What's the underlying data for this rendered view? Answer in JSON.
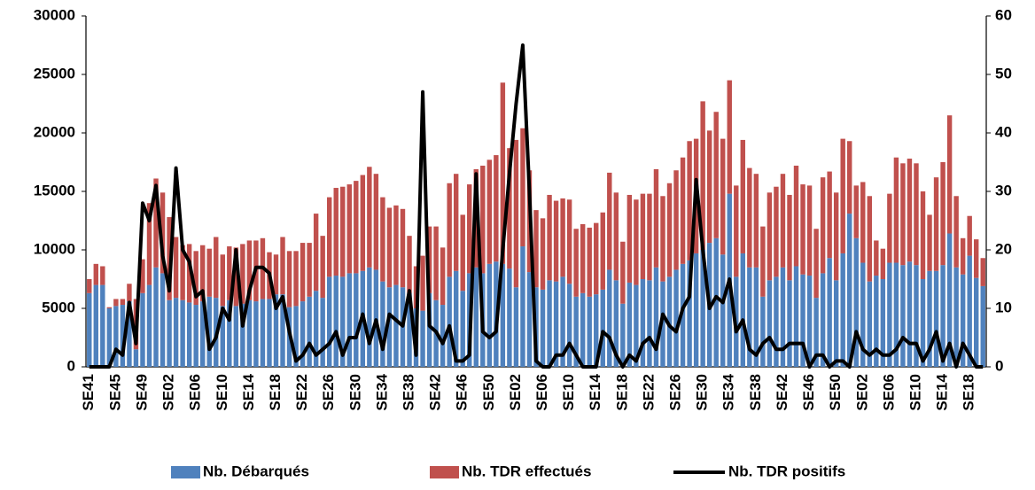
{
  "chart_data": {
    "type": "bar",
    "stacked": true,
    "categories": [
      "SE41",
      null,
      null,
      null,
      "SE45",
      null,
      null,
      null,
      "SE49",
      null,
      null,
      null,
      "SE02",
      null,
      null,
      null,
      "SE06",
      null,
      null,
      null,
      "SE10",
      null,
      null,
      null,
      "SE14",
      null,
      null,
      null,
      "SE18",
      null,
      null,
      null,
      "SE22",
      null,
      null,
      null,
      "SE26",
      null,
      null,
      null,
      "SE30",
      null,
      null,
      null,
      "SE34",
      null,
      null,
      null,
      "SE38",
      null,
      null,
      null,
      "SE42",
      null,
      null,
      null,
      "SE46",
      null,
      null,
      null,
      "SE50",
      null,
      null,
      null,
      "SE02",
      null,
      null,
      null,
      "SE06",
      null,
      null,
      null,
      "SE10",
      null,
      null,
      null,
      "SE14",
      null,
      null,
      null,
      "SE18",
      null,
      null,
      null,
      "SE22",
      null,
      null,
      null,
      "SE26",
      null,
      null,
      null,
      "SE30",
      null,
      null,
      null,
      "SE34",
      null,
      null,
      null,
      "SE38",
      null,
      null,
      null,
      "SE42",
      null,
      null,
      null,
      "SE46",
      null,
      null,
      null,
      "SE50",
      null,
      null,
      null,
      "SE02",
      null,
      null,
      null,
      "SE06",
      null,
      null,
      null,
      "SE10",
      null,
      null,
      null,
      "SE14",
      null,
      null,
      null,
      "SE18",
      null,
      null
    ],
    "series": [
      {
        "name": "Nb. Débarqués",
        "color": "#4f81bd",
        "type": "bar",
        "values": [
          6300,
          7000,
          7000,
          5000,
          5200,
          5300,
          5600,
          1500,
          6300,
          7000,
          8500,
          8000,
          5700,
          5900,
          5700,
          5500,
          5300,
          5600,
          6000,
          5900,
          5200,
          5700,
          5200,
          5400,
          5700,
          5600,
          5800,
          5800,
          6200,
          6200,
          5100,
          5200,
          5600,
          6000,
          6500,
          5900,
          7700,
          7800,
          7700,
          8000,
          8000,
          8200,
          8500,
          8300,
          7300,
          6800,
          7000,
          6800,
          6300,
          5000,
          4800,
          6300,
          5700,
          5300,
          7700,
          8200,
          6500,
          8000,
          8500,
          8000,
          8800,
          9000,
          8800,
          8400,
          6800,
          10300,
          8100,
          6800,
          6600,
          7400,
          7300,
          7700,
          7100,
          6000,
          6300,
          6000,
          6200,
          6600,
          8300,
          7400,
          5400,
          7200,
          7000,
          7500,
          7400,
          8500,
          7300,
          7700,
          8300,
          8800,
          9100,
          9700,
          10000,
          10600,
          11000,
          9600,
          14800,
          7700,
          9700,
          8500,
          8500,
          6000,
          7400,
          7700,
          8500,
          7400,
          8600,
          7900,
          7800,
          5900,
          8000,
          9300,
          7400,
          9700,
          13100,
          11000,
          8900,
          7300,
          7800,
          7500,
          8900,
          8900,
          8700,
          9000,
          8700,
          7500,
          8200,
          8200,
          8700,
          11400,
          8500,
          7900,
          9500,
          7600,
          6900
        ]
      },
      {
        "name": "Nb. TDR effectués",
        "color": "#c0504d",
        "type": "bar",
        "values": [
          1200,
          1800,
          1600,
          100,
          600,
          500,
          1500,
          4300,
          2900,
          7000,
          7600,
          6900,
          7100,
          5200,
          4700,
          5000,
          4600,
          4800,
          4100,
          5200,
          4400,
          4600,
          5000,
          5100,
          5100,
          5200,
          5200,
          4000,
          3400,
          4900,
          4800,
          4700,
          5000,
          4600,
          6600,
          5300,
          6800,
          7500,
          7700,
          7600,
          7900,
          8200,
          8600,
          8200,
          7200,
          6800,
          6800,
          6700,
          4900,
          3600,
          4700,
          5700,
          6300,
          4900,
          8000,
          8300,
          6500,
          7600,
          8400,
          9200,
          8900,
          9100,
          15500,
          10300,
          12600,
          10100,
          8700,
          6600,
          6100,
          7300,
          6900,
          6700,
          7200,
          5800,
          5900,
          5900,
          6100,
          6600,
          8300,
          7500,
          5300,
          7500,
          7300,
          7300,
          7400,
          8400,
          7300,
          8000,
          8500,
          9100,
          10200,
          9800,
          12700,
          9600,
          10800,
          9900,
          9700,
          7800,
          9700,
          8500,
          8000,
          6000,
          7500,
          7700,
          8000,
          7300,
          8600,
          7700,
          7700,
          5900,
          8200,
          7400,
          7500,
          9800,
          6200,
          4500,
          6900,
          7300,
          3000,
          2600,
          5900,
          9000,
          8700,
          8800,
          8700,
          7500,
          4800,
          8000,
          8800,
          10100,
          6100,
          3100,
          3400,
          3300,
          2400
        ]
      },
      {
        "name": "Nb. TDR positifs",
        "color": "#000000",
        "type": "line",
        "axis": "y2",
        "values": [
          0,
          0,
          0,
          0,
          3,
          2,
          11,
          4,
          28,
          25,
          31,
          19,
          13,
          34,
          20,
          18,
          12,
          13,
          3,
          5,
          10,
          8,
          20,
          7,
          13,
          17,
          17,
          16,
          10,
          12,
          6,
          1,
          2,
          4,
          2,
          3,
          4,
          6,
          2,
          5,
          5,
          9,
          4,
          8,
          3,
          9,
          8,
          7,
          13,
          2,
          47,
          7,
          6,
          4,
          7,
          1,
          1,
          2,
          33,
          6,
          5,
          6,
          20,
          33,
          45,
          55,
          30,
          1,
          0,
          0,
          2,
          2,
          4,
          2,
          0,
          0,
          0,
          6,
          5,
          2,
          0,
          2,
          1,
          4,
          5,
          3,
          9,
          7,
          6,
          10,
          12,
          32,
          20,
          10,
          12,
          11,
          15,
          6,
          8,
          3,
          2,
          4,
          5,
          3,
          3,
          4,
          4,
          4,
          0,
          2,
          2,
          0,
          1,
          1,
          0,
          6,
          3,
          2,
          3,
          2,
          2,
          3,
          5,
          4,
          4,
          1,
          3,
          6,
          1,
          4,
          0,
          4,
          2,
          0,
          0
        ]
      }
    ],
    "ylim": [
      0,
      30000
    ],
    "yticks": [
      0,
      5000,
      10000,
      15000,
      20000,
      25000,
      30000
    ],
    "y2lim": [
      0,
      60
    ],
    "y2ticks": [
      0,
      10,
      20,
      30,
      40,
      50,
      60
    ],
    "legend": "bottom"
  }
}
